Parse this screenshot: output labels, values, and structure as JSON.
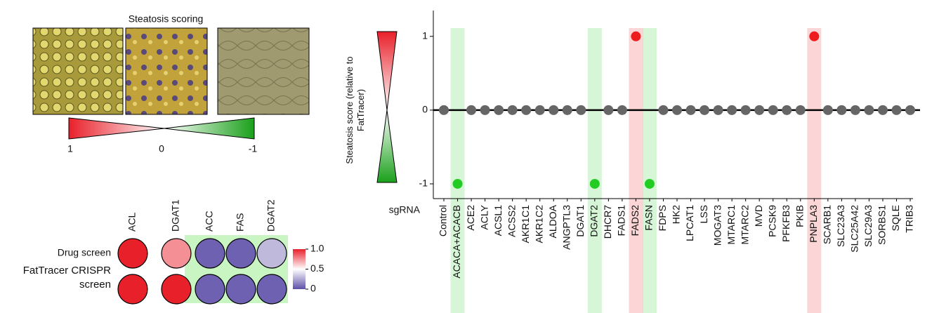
{
  "chart_data": [
    {
      "type": "scale",
      "title": "Steatosis scoring",
      "xlim": [
        1,
        -1
      ],
      "xticks": [
        1,
        0,
        -1
      ]
    },
    {
      "type": "heatmap",
      "columns": [
        "ACL",
        "DGAT1",
        "ACC",
        "FAS",
        "DGAT2"
      ],
      "rows": [
        "Drug screen",
        "FatTracer CRISPR screen"
      ],
      "values": [
        [
          1.0,
          0.75,
          0.05,
          0.05,
          0.3
        ],
        [
          1.0,
          1.0,
          0.05,
          0.05,
          0.05
        ]
      ],
      "highlight_columns": [
        2,
        3,
        4
      ],
      "highlight_color": "#c9f5c3",
      "colorbar_lim": [
        0,
        1
      ],
      "colorbar_ticks": [
        {
          "value": 1,
          "label": "1.0"
        },
        0.5,
        0
      ]
    },
    {
      "type": "dot",
      "y_label": "Steatosis score (relative to FatTracer)",
      "x_label": "sgRNA",
      "categories": [
        "Control",
        "ACACA+ACACB",
        "ACE2",
        "ACLY",
        "ACSL1",
        "ACSS2",
        "AKR1C1",
        "AKR1C2",
        "ALDOA",
        "ANGPTL3",
        "DGAT1",
        "DGAT2",
        "DHCR7",
        "FADS1",
        "FADS2",
        "FASN",
        "FDPS",
        "HK2",
        "LPCAT1",
        "LSS",
        "MOGAT3",
        "MTARC1",
        "MTARC2",
        "MVD",
        "PCSK9",
        "PFKFB3",
        "PKIB",
        "PNPLA3",
        "SCARB1",
        "SLC23A3",
        "SLC25A42",
        "SLC29A3",
        "SORBS1",
        "SQLE",
        "TRIB3"
      ],
      "values": [
        0,
        -1,
        0,
        0,
        0,
        0,
        0,
        0,
        0,
        0,
        0,
        -1,
        0,
        0,
        1,
        -1,
        0,
        0,
        0,
        0,
        0,
        0,
        0,
        0,
        0,
        0,
        0,
        1,
        0,
        0,
        0,
        0,
        0,
        0,
        0
      ],
      "colors": [
        "#666666",
        "#22cc22",
        "#666666",
        "#666666",
        "#666666",
        "#666666",
        "#666666",
        "#666666",
        "#666666",
        "#666666",
        "#666666",
        "#22cc22",
        "#666666",
        "#666666",
        "#ee1c1c",
        "#22cc22",
        "#666666",
        "#666666",
        "#666666",
        "#666666",
        "#666666",
        "#666666",
        "#666666",
        "#666666",
        "#666666",
        "#666666",
        "#666666",
        "#ee1c1c",
        "#666666",
        "#666666",
        "#666666",
        "#666666",
        "#666666",
        "#666666",
        "#666666"
      ],
      "ylim": [
        -1.2,
        1.35
      ],
      "yticks": [
        -1,
        0,
        1
      ]
    }
  ]
}
